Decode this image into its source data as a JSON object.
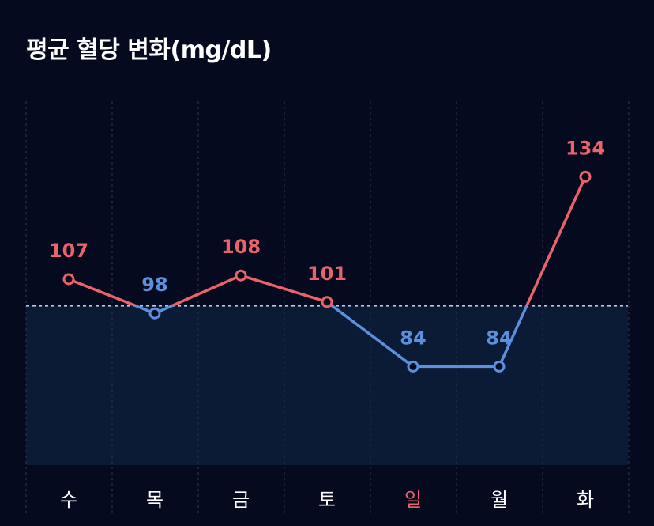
{
  "title": "평균 혈당 변화(mg/dL)",
  "chart_data": {
    "type": "line",
    "title": "평균 혈당 변화(mg/dL)",
    "categories": [
      "수",
      "목",
      "금",
      "토",
      "일",
      "월",
      "화"
    ],
    "values": [
      107,
      98,
      108,
      101,
      84,
      84,
      134
    ],
    "value_labels": [
      "107",
      "98",
      "108",
      "101",
      "84",
      "84",
      "134"
    ],
    "threshold": 100,
    "ylim": [
      70,
      140
    ],
    "grid": "vertical dashed",
    "colors": {
      "above_threshold": "#e8636a",
      "below_threshold": "#5d8fdc",
      "threshold_line": "#b9c8ea",
      "below_zone_fill": "#0b1a35",
      "tick_default": "#ffffff",
      "tick_highlight": "#e8636a",
      "gridline": "#1f2a44",
      "background": "#050a1f"
    },
    "highlight_category": "일"
  }
}
